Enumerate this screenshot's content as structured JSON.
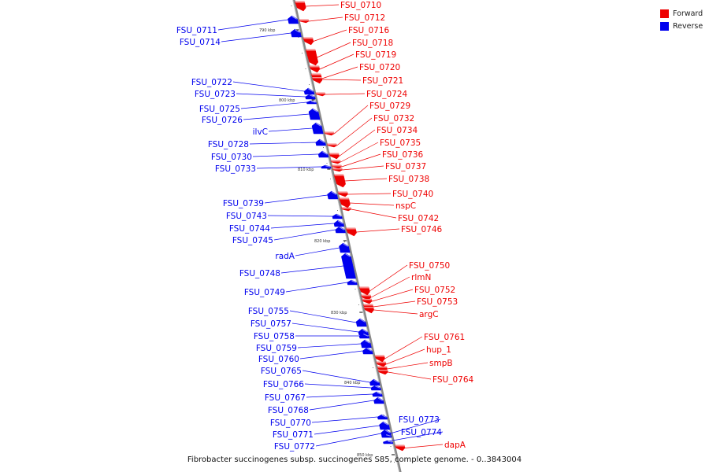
{
  "caption": "Fibrobacter succinogenes subsp. succinogenes S85, complete genome. - 0..3843004",
  "legend": [
    {
      "label": "Forward",
      "color": "#ee0000"
    },
    {
      "label": "Reverse",
      "color": "#0000ee"
    }
  ],
  "colors": {
    "forward": "#ee0000",
    "reverse": "#0000ee",
    "backbone": "#888888"
  },
  "ticks": [
    {
      "label": "790 kbp"
    },
    {
      "label": "800 kbp"
    },
    {
      "label": "810 kbp"
    },
    {
      "label": "820 kbp"
    },
    {
      "label": "830 kbp"
    },
    {
      "label": "840 kbp"
    },
    {
      "label": "850 kbp"
    }
  ],
  "forward_genes": [
    {
      "name": "FSU_0710"
    },
    {
      "name": "FSU_0712"
    },
    {
      "name": "FSU_0716"
    },
    {
      "name": "FSU_0718"
    },
    {
      "name": "FSU_0719"
    },
    {
      "name": "FSU_0720"
    },
    {
      "name": "FSU_0721"
    },
    {
      "name": "FSU_0724"
    },
    {
      "name": "FSU_0729"
    },
    {
      "name": "FSU_0732"
    },
    {
      "name": "FSU_0734"
    },
    {
      "name": "FSU_0735"
    },
    {
      "name": "FSU_0736"
    },
    {
      "name": "FSU_0737"
    },
    {
      "name": "FSU_0738"
    },
    {
      "name": "FSU_0740"
    },
    {
      "name": "nspC"
    },
    {
      "name": "FSU_0742"
    },
    {
      "name": "FSU_0746"
    },
    {
      "name": "FSU_0750"
    },
    {
      "name": "rlmN"
    },
    {
      "name": "FSU_0752"
    },
    {
      "name": "FSU_0753"
    },
    {
      "name": "argC"
    },
    {
      "name": "FSU_0761"
    },
    {
      "name": "hup_1"
    },
    {
      "name": "smpB"
    },
    {
      "name": "FSU_0764"
    },
    {
      "name": "dapA"
    }
  ],
  "reverse_genes": [
    {
      "name": "FSU_0711"
    },
    {
      "name": "FSU_0714"
    },
    {
      "name": "FSU_0722"
    },
    {
      "name": "FSU_0723"
    },
    {
      "name": "FSU_0725"
    },
    {
      "name": "FSU_0726"
    },
    {
      "name": "ilvC"
    },
    {
      "name": "FSU_0728"
    },
    {
      "name": "FSU_0730"
    },
    {
      "name": "FSU_0733"
    },
    {
      "name": "FSU_0739"
    },
    {
      "name": "FSU_0743"
    },
    {
      "name": "FSU_0744"
    },
    {
      "name": "FSU_0745"
    },
    {
      "name": "radA"
    },
    {
      "name": "FSU_0748"
    },
    {
      "name": "FSU_0749"
    },
    {
      "name": "FSU_0755"
    },
    {
      "name": "FSU_0757"
    },
    {
      "name": "FSU_0758"
    },
    {
      "name": "FSU_0759"
    },
    {
      "name": "FSU_0760"
    },
    {
      "name": "FSU_0765"
    },
    {
      "name": "FSU_0766"
    },
    {
      "name": "FSU_0767"
    },
    {
      "name": "FSU_0768"
    },
    {
      "name": "FSU_0770"
    },
    {
      "name": "FSU_0771"
    },
    {
      "name": "FSU_0772"
    },
    {
      "name": "FSU_0773"
    },
    {
      "name": "FSU_0774"
    }
  ]
}
